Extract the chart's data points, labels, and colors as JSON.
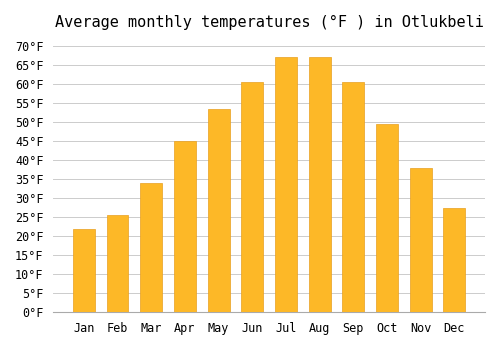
{
  "title": "Average monthly temperatures (°F ) in Otlukbeli",
  "months": [
    "Jan",
    "Feb",
    "Mar",
    "Apr",
    "May",
    "Jun",
    "Jul",
    "Aug",
    "Sep",
    "Oct",
    "Nov",
    "Dec"
  ],
  "values": [
    22,
    25.5,
    34,
    45,
    53.5,
    60.5,
    67,
    67,
    60.5,
    49.5,
    38,
    27.5
  ],
  "bar_color": "#FDB827",
  "bar_edge_color": "#E8A020",
  "background_color": "#ffffff",
  "grid_color": "#cccccc",
  "ylim": [
    0,
    72
  ],
  "yticks": [
    0,
    5,
    10,
    15,
    20,
    25,
    30,
    35,
    40,
    45,
    50,
    55,
    60,
    65,
    70
  ],
  "title_fontsize": 11,
  "tick_fontsize": 8.5,
  "font_family": "monospace"
}
